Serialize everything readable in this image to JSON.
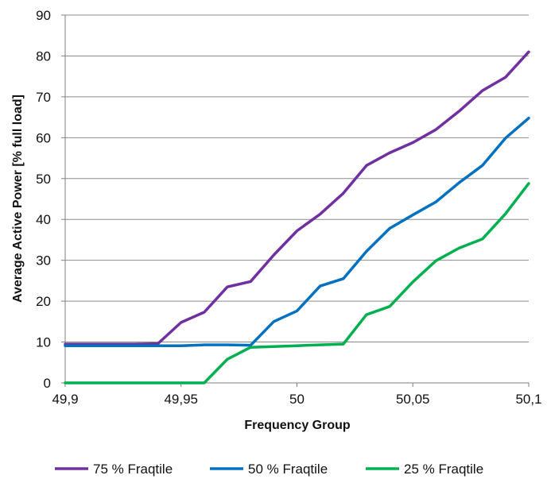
{
  "chart_data": {
    "type": "line",
    "title": "",
    "xlabel": "Frequency Group",
    "ylabel": "Average Active Power [% full load]",
    "xlim": [
      49.9,
      50.1
    ],
    "ylim": [
      0,
      90
    ],
    "x_ticks": [
      "49,9",
      "49,95",
      "50",
      "50,05",
      "50,1"
    ],
    "y_ticks": [
      "0",
      "10",
      "20",
      "30",
      "40",
      "50",
      "60",
      "70",
      "80",
      "90"
    ],
    "grid": "horizontal",
    "legend_position": "bottom",
    "x": [
      49.9,
      49.91,
      49.92,
      49.93,
      49.94,
      49.95,
      49.96,
      49.97,
      49.98,
      49.99,
      50.0,
      50.01,
      50.02,
      50.03,
      50.04,
      50.05,
      50.06,
      50.07,
      50.08,
      50.09,
      50.1
    ],
    "series": [
      {
        "name": "75 % Fraqtile",
        "color": "#7030a0",
        "values": [
          9.5,
          9.5,
          9.5,
          9.5,
          9.6,
          14.8,
          17.3,
          23.5,
          24.8,
          31.3,
          37.2,
          41.3,
          46.4,
          53.2,
          56.3,
          58.8,
          62.0,
          66.5,
          71.5,
          74.8,
          81.0
        ]
      },
      {
        "name": "50 % Fraqtile",
        "color": "#0070c0",
        "values": [
          9.1,
          9.1,
          9.1,
          9.1,
          9.1,
          9.1,
          9.3,
          9.3,
          9.2,
          15.0,
          17.6,
          23.7,
          25.5,
          32.2,
          37.8,
          41.1,
          44.3,
          49.0,
          53.2,
          59.9,
          64.8
        ]
      },
      {
        "name": "25 % Fraqtile",
        "color": "#00b050",
        "values": [
          0,
          0,
          0,
          0,
          0,
          0,
          0,
          5.8,
          8.7,
          8.9,
          9.1,
          9.3,
          9.5,
          16.7,
          18.7,
          24.7,
          29.9,
          33.0,
          35.2,
          41.4,
          48.8
        ]
      }
    ]
  }
}
